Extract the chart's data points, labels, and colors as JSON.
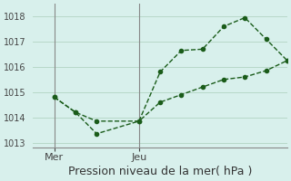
{
  "background_color": "#d8f0ec",
  "line_color": "#1a5c1a",
  "grid_color": "#b8d8c8",
  "ylim": [
    1012.8,
    1018.5
  ],
  "yticks": [
    1013,
    1014,
    1015,
    1016,
    1017,
    1018
  ],
  "xlim": [
    0,
    24
  ],
  "x_mer": 2,
  "x_jeu": 10,
  "series1_x": [
    2,
    4,
    6,
    10,
    12,
    14,
    16,
    18,
    20,
    22,
    24
  ],
  "series1_y": [
    1014.8,
    1014.2,
    1013.35,
    1013.85,
    1015.8,
    1016.65,
    1016.7,
    1017.6,
    1017.95,
    1017.1,
    1016.25
  ],
  "series2_x": [
    2,
    4,
    6,
    10,
    12,
    14,
    16,
    18,
    20,
    22,
    24
  ],
  "series2_y": [
    1014.8,
    1014.2,
    1013.85,
    1013.85,
    1014.6,
    1014.9,
    1015.2,
    1015.5,
    1015.6,
    1015.85,
    1016.25
  ],
  "xtick_labels": [
    "Mer",
    "Jeu"
  ],
  "xtick_positions": [
    2,
    10
  ],
  "xlabel": "Pression niveau de la mer( hPa )",
  "xlabel_fontsize": 9,
  "ytick_fontsize": 7,
  "xtick_fontsize": 8
}
